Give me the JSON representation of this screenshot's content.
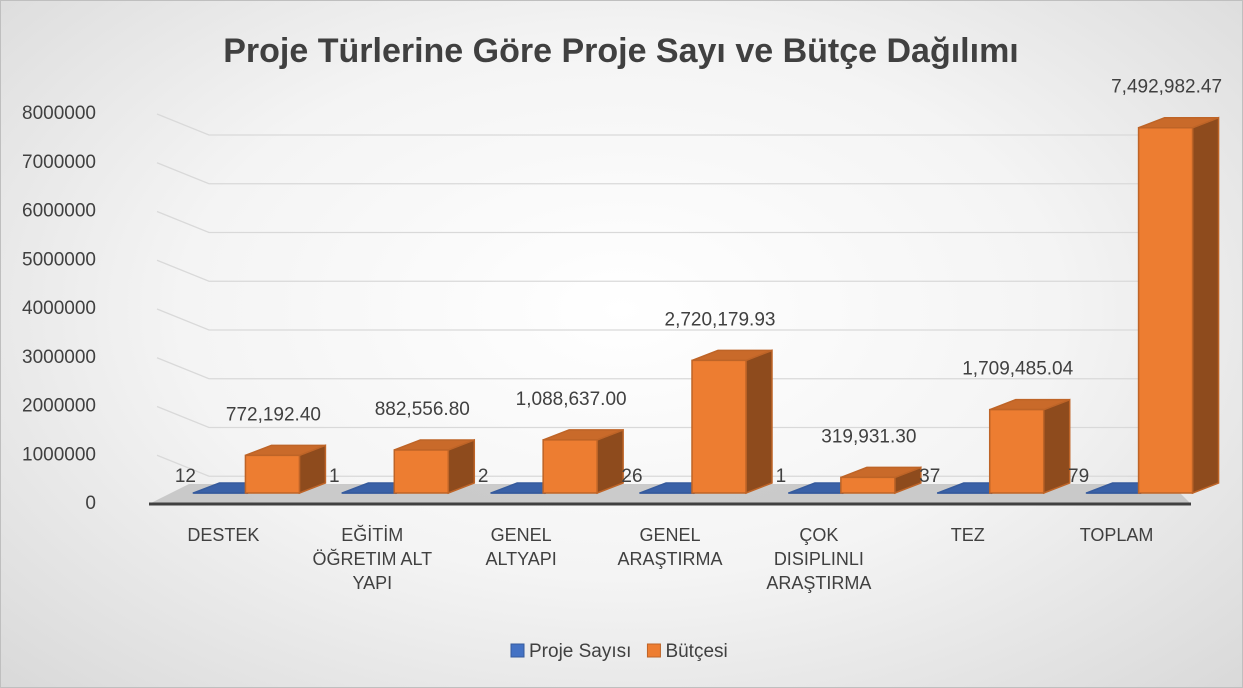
{
  "chart_data": {
    "type": "bar3d",
    "title": "Proje Türlerine Göre Proje Sayı ve Bütçe Dağılımı",
    "categories": [
      "DESTEK",
      "EĞİTİM ÖĞRETIM ALT YAPI",
      "GENEL ALTYAPI",
      "GENEL ARAŞTIRMA",
      "ÇOK DISIPLINLI ARAŞTIRMA",
      "TEZ",
      "TOPLAM"
    ],
    "series": [
      {
        "name": "Proje Sayısı",
        "color": "#4472c4",
        "values": [
          12,
          1,
          2,
          26,
          1,
          37,
          79
        ]
      },
      {
        "name": "Bütçesi",
        "color": "#ed7d31",
        "values": [
          772192.4,
          882556.8,
          1088637.0,
          2720179.93,
          319931.3,
          1709485.04,
          7492982.47
        ],
        "value_labels": [
          "772,192.40",
          "882,556.80",
          "1,088,637.00",
          "2,720,179.93",
          "319,931.30",
          "1,709,485.04",
          "7,492,982.47"
        ]
      }
    ],
    "ylim": [
      0,
      8000000
    ],
    "yticks": [
      0,
      1000000,
      2000000,
      3000000,
      4000000,
      5000000,
      6000000,
      7000000,
      8000000
    ],
    "grid": true,
    "legend": "bottom"
  }
}
